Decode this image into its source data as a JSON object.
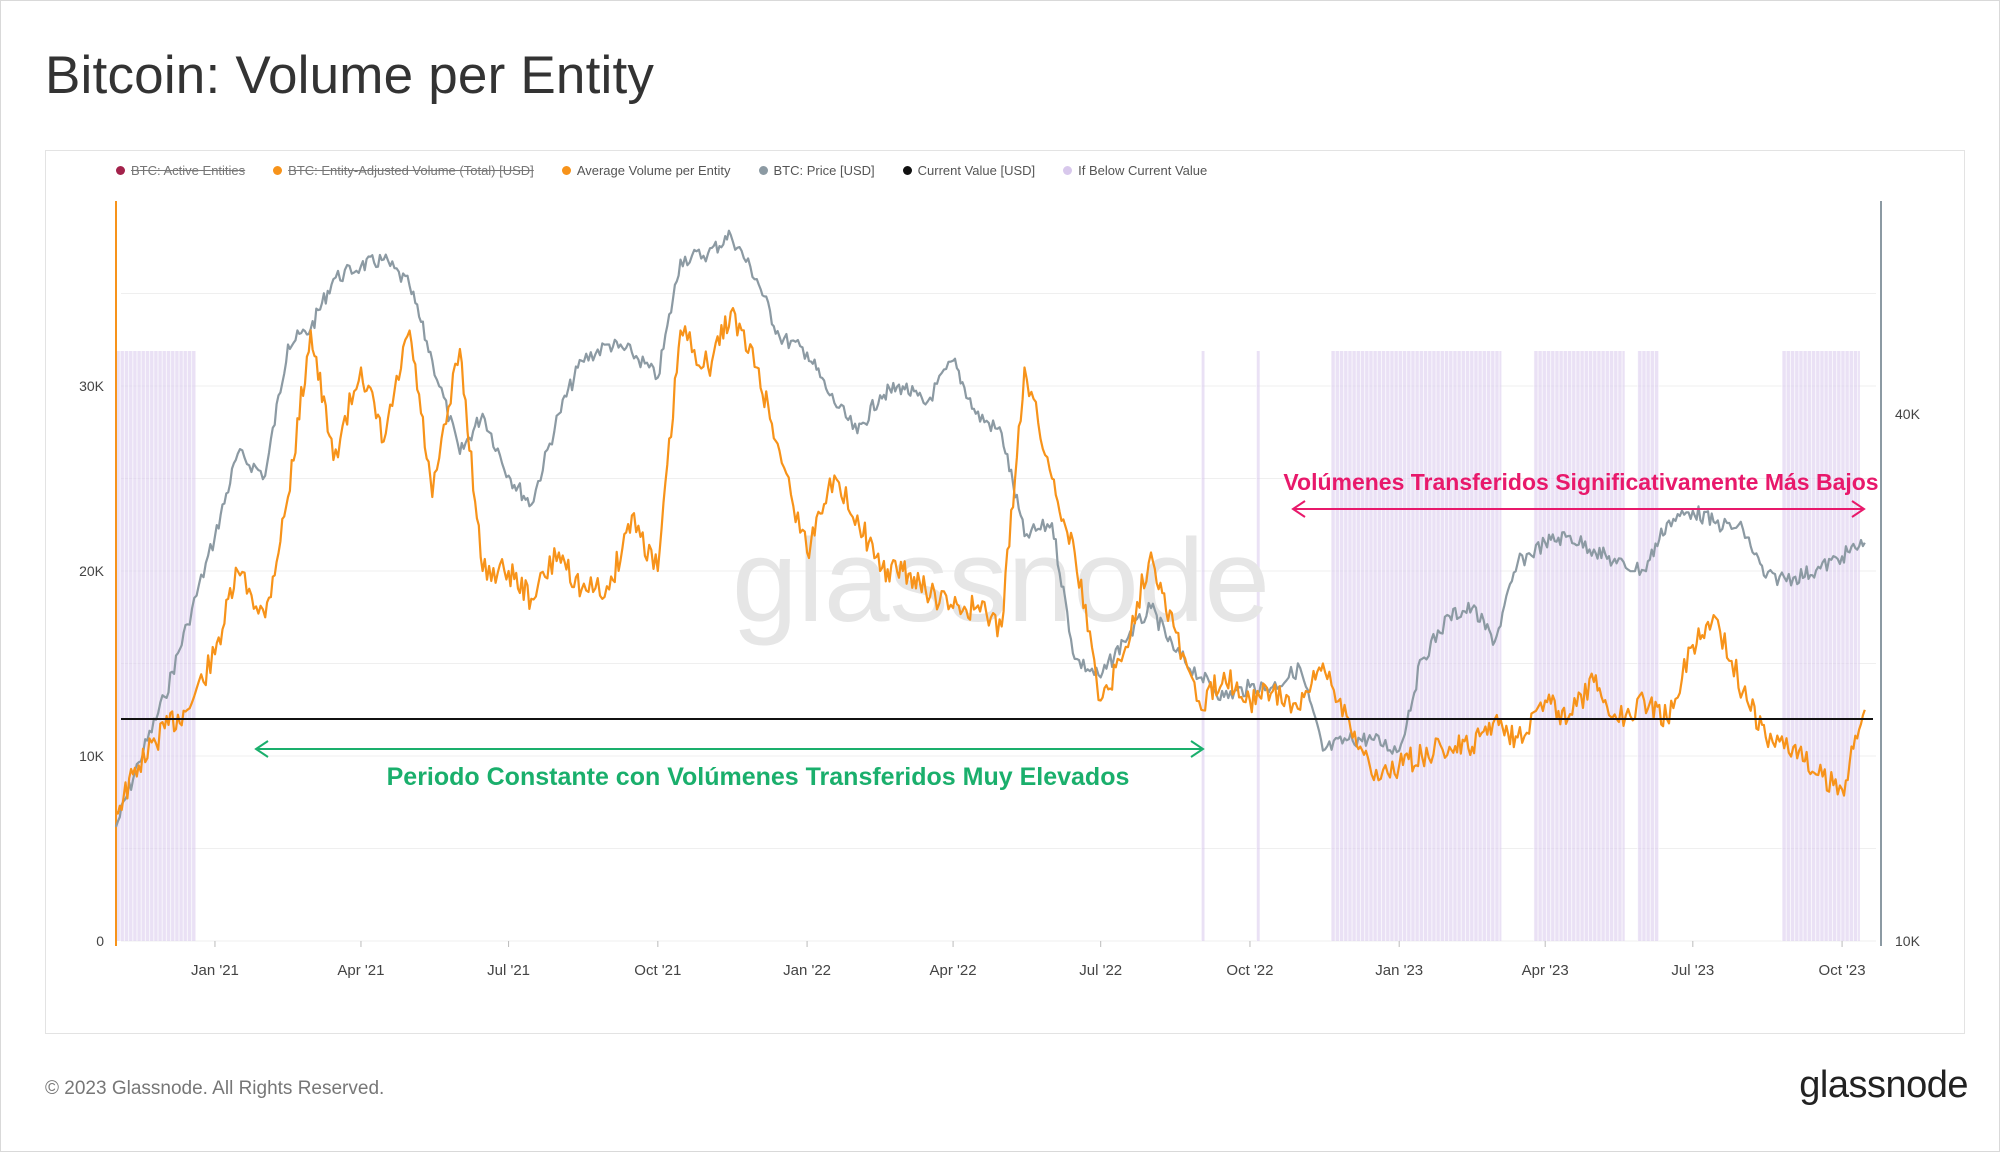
{
  "title": "Bitcoin: Volume per Entity",
  "footer": {
    "copyright": "© 2023 Glassnode. All Rights Reserved.",
    "logo": "glassnode"
  },
  "watermark": "glassnode",
  "legend": [
    {
      "label": "BTC: Active Entities",
      "color": "#a3224b",
      "disabled": true
    },
    {
      "label": "BTC: Entity-Adjusted Volume (Total) [USD]",
      "color": "#f7931a",
      "disabled": true
    },
    {
      "label": "Average Volume per Entity",
      "color": "#f7931a",
      "disabled": false
    },
    {
      "label": "BTC: Price [USD]",
      "color": "#8c9aa3",
      "disabled": false
    },
    {
      "label": "Current Value [USD]",
      "color": "#111111",
      "disabled": false
    },
    {
      "label": "If Below Current Value",
      "color": "#d8c8ec",
      "disabled": false
    }
  ],
  "annotations": {
    "high_period": {
      "text": "Periodo Constante con Volúmenes Transferidos Muy Elevados",
      "color": "#1aaf6c"
    },
    "low_period": {
      "text": "Volúmenes Transferidos Significativamente Más Bajos",
      "color": "#e8196b"
    }
  },
  "colors": {
    "volume": "#f7931a",
    "price": "#8c9aa3",
    "current": "#111111",
    "below": "#d8c8ec"
  },
  "chart_data": {
    "type": "line",
    "x_ticks": [
      "Jan '21",
      "Apr '21",
      "Jul '21",
      "Oct '21",
      "Jan '22",
      "Apr '22",
      "Jul '22",
      "Oct '22",
      "Jan '23",
      "Apr '23",
      "Jul '23",
      "Oct '23"
    ],
    "x_start": "2020-11",
    "x_end": "2023-10",
    "y_left": {
      "ticks": [
        "0",
        "10K",
        "20K",
        "30K"
      ],
      "range": [
        0,
        40000
      ]
    },
    "y_right": {
      "ticks": [
        "10K",
        "40K"
      ],
      "range_log": [
        10000,
        70000
      ]
    },
    "current_value": 12000,
    "series": [
      {
        "name": "Average Volume per Entity",
        "axis": "left",
        "x": [
          "2020-11-01",
          "2020-11-15",
          "2020-12-01",
          "2020-12-15",
          "2021-01-01",
          "2021-01-15",
          "2021-02-01",
          "2021-02-15",
          "2021-03-01",
          "2021-03-15",
          "2021-04-01",
          "2021-04-15",
          "2021-05-01",
          "2021-05-15",
          "2021-06-01",
          "2021-06-15",
          "2021-07-01",
          "2021-07-15",
          "2021-08-01",
          "2021-08-15",
          "2021-09-01",
          "2021-09-15",
          "2021-10-01",
          "2021-10-15",
          "2021-11-01",
          "2021-11-15",
          "2021-12-01",
          "2021-12-15",
          "2022-01-01",
          "2022-01-15",
          "2022-02-01",
          "2022-02-15",
          "2022-03-01",
          "2022-03-15",
          "2022-04-01",
          "2022-04-15",
          "2022-05-01",
          "2022-05-15",
          "2022-06-01",
          "2022-06-15",
          "2022-07-01",
          "2022-07-15",
          "2022-08-01",
          "2022-08-15",
          "2022-09-01",
          "2022-09-15",
          "2022-10-01",
          "2022-10-15",
          "2022-11-01",
          "2022-11-15",
          "2022-12-01",
          "2022-12-15",
          "2023-01-01",
          "2023-01-15",
          "2023-02-01",
          "2023-02-15",
          "2023-03-01",
          "2023-03-15",
          "2023-04-01",
          "2023-04-15",
          "2023-05-01",
          "2023-05-15",
          "2023-06-01",
          "2023-06-15",
          "2023-07-01",
          "2023-07-15",
          "2023-08-01",
          "2023-08-15",
          "2023-09-01",
          "2023-09-15",
          "2023-10-01",
          "2023-10-15"
        ],
        "values": [
          7000,
          9500,
          11500,
          12500,
          15500,
          20000,
          17500,
          24000,
          33000,
          26000,
          31000,
          27000,
          33000,
          24000,
          32000,
          20000,
          20000,
          18500,
          21000,
          19000,
          19000,
          23000,
          20000,
          33000,
          31000,
          34000,
          31000,
          26500,
          21000,
          25000,
          23000,
          20000,
          20000,
          19000,
          18000,
          18000,
          17000,
          31000,
          25000,
          21000,
          13000,
          15500,
          21000,
          17000,
          12500,
          14500,
          13000,
          13500,
          12500,
          15000,
          12000,
          9000,
          9500,
          10000,
          10500,
          10500,
          12000,
          11000,
          13000,
          12000,
          14000,
          12000,
          13000,
          12000,
          16000,
          17500,
          13500,
          11000,
          10500,
          9000,
          8200,
          12500
        ]
      },
      {
        "name": "BTC: Price [USD]",
        "axis": "right",
        "x": [
          "2020-11-01",
          "2020-11-15",
          "2020-12-01",
          "2020-12-15",
          "2021-01-01",
          "2021-01-15",
          "2021-02-01",
          "2021-02-15",
          "2021-03-01",
          "2021-03-15",
          "2021-04-01",
          "2021-04-15",
          "2021-05-01",
          "2021-05-15",
          "2021-06-01",
          "2021-06-15",
          "2021-07-01",
          "2021-07-15",
          "2021-08-01",
          "2021-08-15",
          "2021-09-01",
          "2021-09-15",
          "2021-10-01",
          "2021-10-15",
          "2021-11-01",
          "2021-11-15",
          "2021-12-01",
          "2021-12-15",
          "2022-01-01",
          "2022-01-15",
          "2022-02-01",
          "2022-02-15",
          "2022-03-01",
          "2022-03-15",
          "2022-04-01",
          "2022-04-15",
          "2022-05-01",
          "2022-05-15",
          "2022-06-01",
          "2022-06-15",
          "2022-07-01",
          "2022-07-15",
          "2022-08-01",
          "2022-08-15",
          "2022-09-01",
          "2022-09-15",
          "2022-10-01",
          "2022-10-15",
          "2022-11-01",
          "2022-11-15",
          "2022-12-01",
          "2022-12-15",
          "2023-01-01",
          "2023-01-15",
          "2023-02-01",
          "2023-02-15",
          "2023-03-01",
          "2023-03-15",
          "2023-04-01",
          "2023-04-15",
          "2023-05-01",
          "2023-05-15",
          "2023-06-01",
          "2023-06-15",
          "2023-07-01",
          "2023-07-15",
          "2023-08-01",
          "2023-08-15",
          "2023-09-01",
          "2023-09-15",
          "2023-10-01",
          "2023-10-15"
        ],
        "values": [
          13500,
          16000,
          19000,
          23000,
          29000,
          36000,
          34000,
          48000,
          50000,
          57000,
          59000,
          60000,
          56000,
          46000,
          36000,
          40000,
          34000,
          31500,
          40000,
          46000,
          48000,
          47000,
          44000,
          60000,
          61000,
          64000,
          57000,
          49000,
          47000,
          42000,
          38000,
          42000,
          43000,
          41000,
          46000,
          40000,
          38000,
          29000,
          30000,
          21000,
          20000,
          22000,
          24000,
          21500,
          20000,
          19000,
          19500,
          19500,
          20500,
          16500,
          17000,
          17000,
          16500,
          21000,
          23500,
          24000,
          22000,
          27000,
          28500,
          29000,
          28000,
          27000,
          26500,
          30000,
          31000,
          30000,
          29500,
          26000,
          26000,
          26500,
          27500,
          28500
        ]
      }
    ],
    "below_periods": [
      {
        "start": "2020-11-01",
        "end": "2020-12-20"
      },
      {
        "start": "2022-09-01",
        "end": "2022-09-03"
      },
      {
        "start": "2022-10-05",
        "end": "2022-10-07"
      },
      {
        "start": "2022-11-20",
        "end": "2023-03-05"
      },
      {
        "start": "2023-03-25",
        "end": "2023-05-20"
      },
      {
        "start": "2023-05-28",
        "end": "2023-06-10"
      },
      {
        "start": "2023-08-25",
        "end": "2023-10-12"
      }
    ]
  }
}
